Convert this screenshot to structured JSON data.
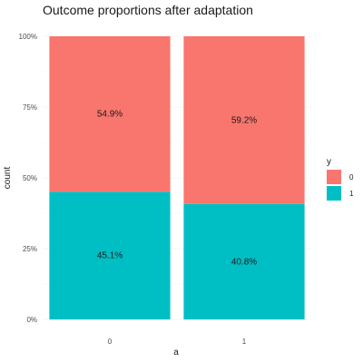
{
  "chart_data": {
    "type": "bar",
    "stacked": true,
    "normalized": true,
    "title": "Outcome proportions after adaptation",
    "xlabel": "a",
    "ylabel": "count",
    "categories": [
      "0",
      "1"
    ],
    "y_ticks": [
      0,
      0.25,
      0.5,
      0.75,
      1
    ],
    "y_tick_labels": [
      "0%",
      "25%",
      "50%",
      "75%",
      "100%"
    ],
    "ylim": [
      0,
      1
    ],
    "legend_title": "y",
    "legend_position": "right",
    "grid": true,
    "series": [
      {
        "name": "0",
        "color": "#F8766D",
        "values": [
          0.549,
          0.592
        ],
        "labels": [
          "54.9%",
          "59.2%"
        ]
      },
      {
        "name": "1",
        "color": "#00BFC4",
        "values": [
          0.451,
          0.408
        ],
        "labels": [
          "45.1%",
          "40.8%"
        ]
      }
    ]
  }
}
